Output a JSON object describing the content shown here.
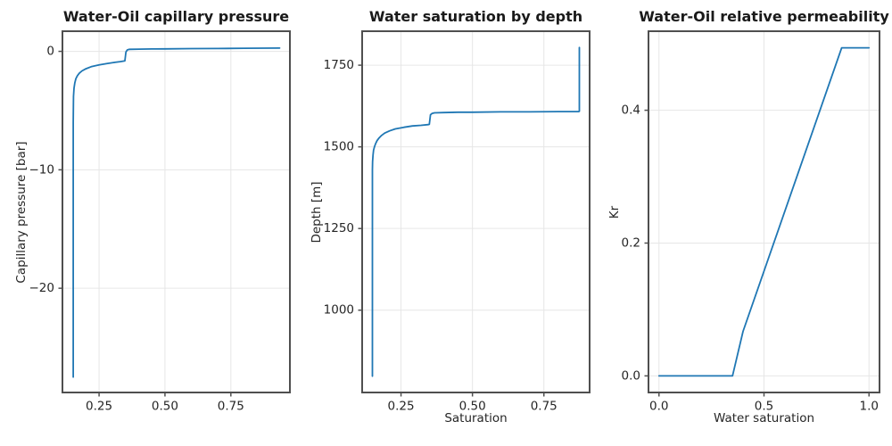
{
  "figure": {
    "background": "#ffffff"
  },
  "style": {
    "line_color": "#1f77b4",
    "grid_color": "#e6e6e6",
    "spine_color": "#4f4f4f",
    "tick_color": "#4f4f4f",
    "text_color": "#262626",
    "title_color": "#1a1a1a"
  },
  "chart_data": [
    {
      "type": "line",
      "title": "Water-Oil capillary pressure",
      "xlabel": "",
      "ylabel": "Capillary pressure [bar]",
      "xlim": [
        0.111,
        0.974
      ],
      "ylim": [
        -28.8,
        1.7
      ],
      "grid": true,
      "legend": "none",
      "xticks": {
        "values": [
          0.25,
          0.5,
          0.75
        ],
        "labels": [
          "0.25",
          "0.50",
          "0.75"
        ]
      },
      "yticks": {
        "values": [
          0,
          -10,
          -20
        ],
        "labels": [
          "0",
          "−10",
          "−20"
        ]
      },
      "series": [
        {
          "name": "water-oil-capillary-pressure-curve",
          "points": [
            [
              0.152,
              -27.5
            ],
            [
              0.152,
              -10
            ],
            [
              0.152,
              -6
            ],
            [
              0.1525,
              -4.5
            ],
            [
              0.153,
              -3.8
            ],
            [
              0.155,
              -3.1
            ],
            [
              0.158,
              -2.65
            ],
            [
              0.162,
              -2.3
            ],
            [
              0.168,
              -2.05
            ],
            [
              0.175,
              -1.85
            ],
            [
              0.185,
              -1.65
            ],
            [
              0.2,
              -1.47
            ],
            [
              0.22,
              -1.3
            ],
            [
              0.25,
              -1.15
            ],
            [
              0.28,
              -1.03
            ],
            [
              0.31,
              -0.93
            ],
            [
              0.33,
              -0.87
            ],
            [
              0.348,
              -0.8
            ],
            [
              0.352,
              -0.05
            ],
            [
              0.357,
              0.12
            ],
            [
              0.365,
              0.17
            ],
            [
              0.4,
              0.19
            ],
            [
              0.45,
              0.2
            ],
            [
              0.5,
              0.21
            ],
            [
              0.6,
              0.23
            ],
            [
              0.7,
              0.24
            ],
            [
              0.8,
              0.26
            ],
            [
              0.935,
              0.28
            ]
          ]
        }
      ]
    },
    {
      "type": "line",
      "title": "Water saturation by depth",
      "xlabel": "Saturation",
      "ylabel": "Depth [m]",
      "xlim": [
        0.114,
        0.91
      ],
      "ylim": [
        748,
        1854
      ],
      "grid": true,
      "legend": "none",
      "xticks": {
        "values": [
          0.25,
          0.5,
          0.75
        ],
        "labels": [
          "0.25",
          "0.50",
          "0.75"
        ]
      },
      "yticks": {
        "values": [
          1000,
          1250,
          1500,
          1750
        ],
        "labels": [
          "1000",
          "1250",
          "1500",
          "1750"
        ]
      },
      "series": [
        {
          "name": "water-saturation-vs-depth-curve",
          "points": [
            [
              0.15,
              798
            ],
            [
              0.15,
              1200
            ],
            [
              0.15,
              1430
            ],
            [
              0.1505,
              1455
            ],
            [
              0.152,
              1475
            ],
            [
              0.154,
              1490
            ],
            [
              0.157,
              1500
            ],
            [
              0.161,
              1510
            ],
            [
              0.166,
              1519
            ],
            [
              0.173,
              1527
            ],
            [
              0.182,
              1535
            ],
            [
              0.193,
              1542
            ],
            [
              0.21,
              1549
            ],
            [
              0.23,
              1555
            ],
            [
              0.26,
              1560
            ],
            [
              0.29,
              1564
            ],
            [
              0.32,
              1566
            ],
            [
              0.345,
              1568
            ],
            [
              0.349,
              1569
            ],
            [
              0.353,
              1598
            ],
            [
              0.358,
              1602
            ],
            [
              0.367,
              1604
            ],
            [
              0.4,
              1605
            ],
            [
              0.45,
              1606
            ],
            [
              0.5,
              1606
            ],
            [
              0.6,
              1607
            ],
            [
              0.7,
              1607
            ],
            [
              0.8,
              1608
            ],
            [
              0.872,
              1608
            ],
            [
              0.874,
              1609
            ],
            [
              0.874,
              1804
            ]
          ]
        }
      ]
    },
    {
      "type": "line",
      "title": "Water-Oil relative permeability",
      "xlabel": "Water saturation",
      "ylabel": "Kr",
      "xlim": [
        -0.05,
        1.05
      ],
      "ylim": [
        -0.025,
        0.519
      ],
      "grid": true,
      "legend": "none",
      "xticks": {
        "values": [
          0,
          0.5,
          1
        ],
        "labels": [
          "0.0",
          "0.5",
          "1.0"
        ]
      },
      "yticks": {
        "values": [
          0,
          0.2,
          0.4
        ],
        "labels": [
          "0.0",
          "0.2",
          "0.4"
        ]
      },
      "series": [
        {
          "name": "water-relative-permeability-curve",
          "points": [
            [
              0,
              0
            ],
            [
              0.35,
              0
            ],
            [
              0.4,
              0.067
            ],
            [
              0.87,
              0.494
            ],
            [
              1,
              0.494
            ]
          ]
        }
      ]
    }
  ]
}
